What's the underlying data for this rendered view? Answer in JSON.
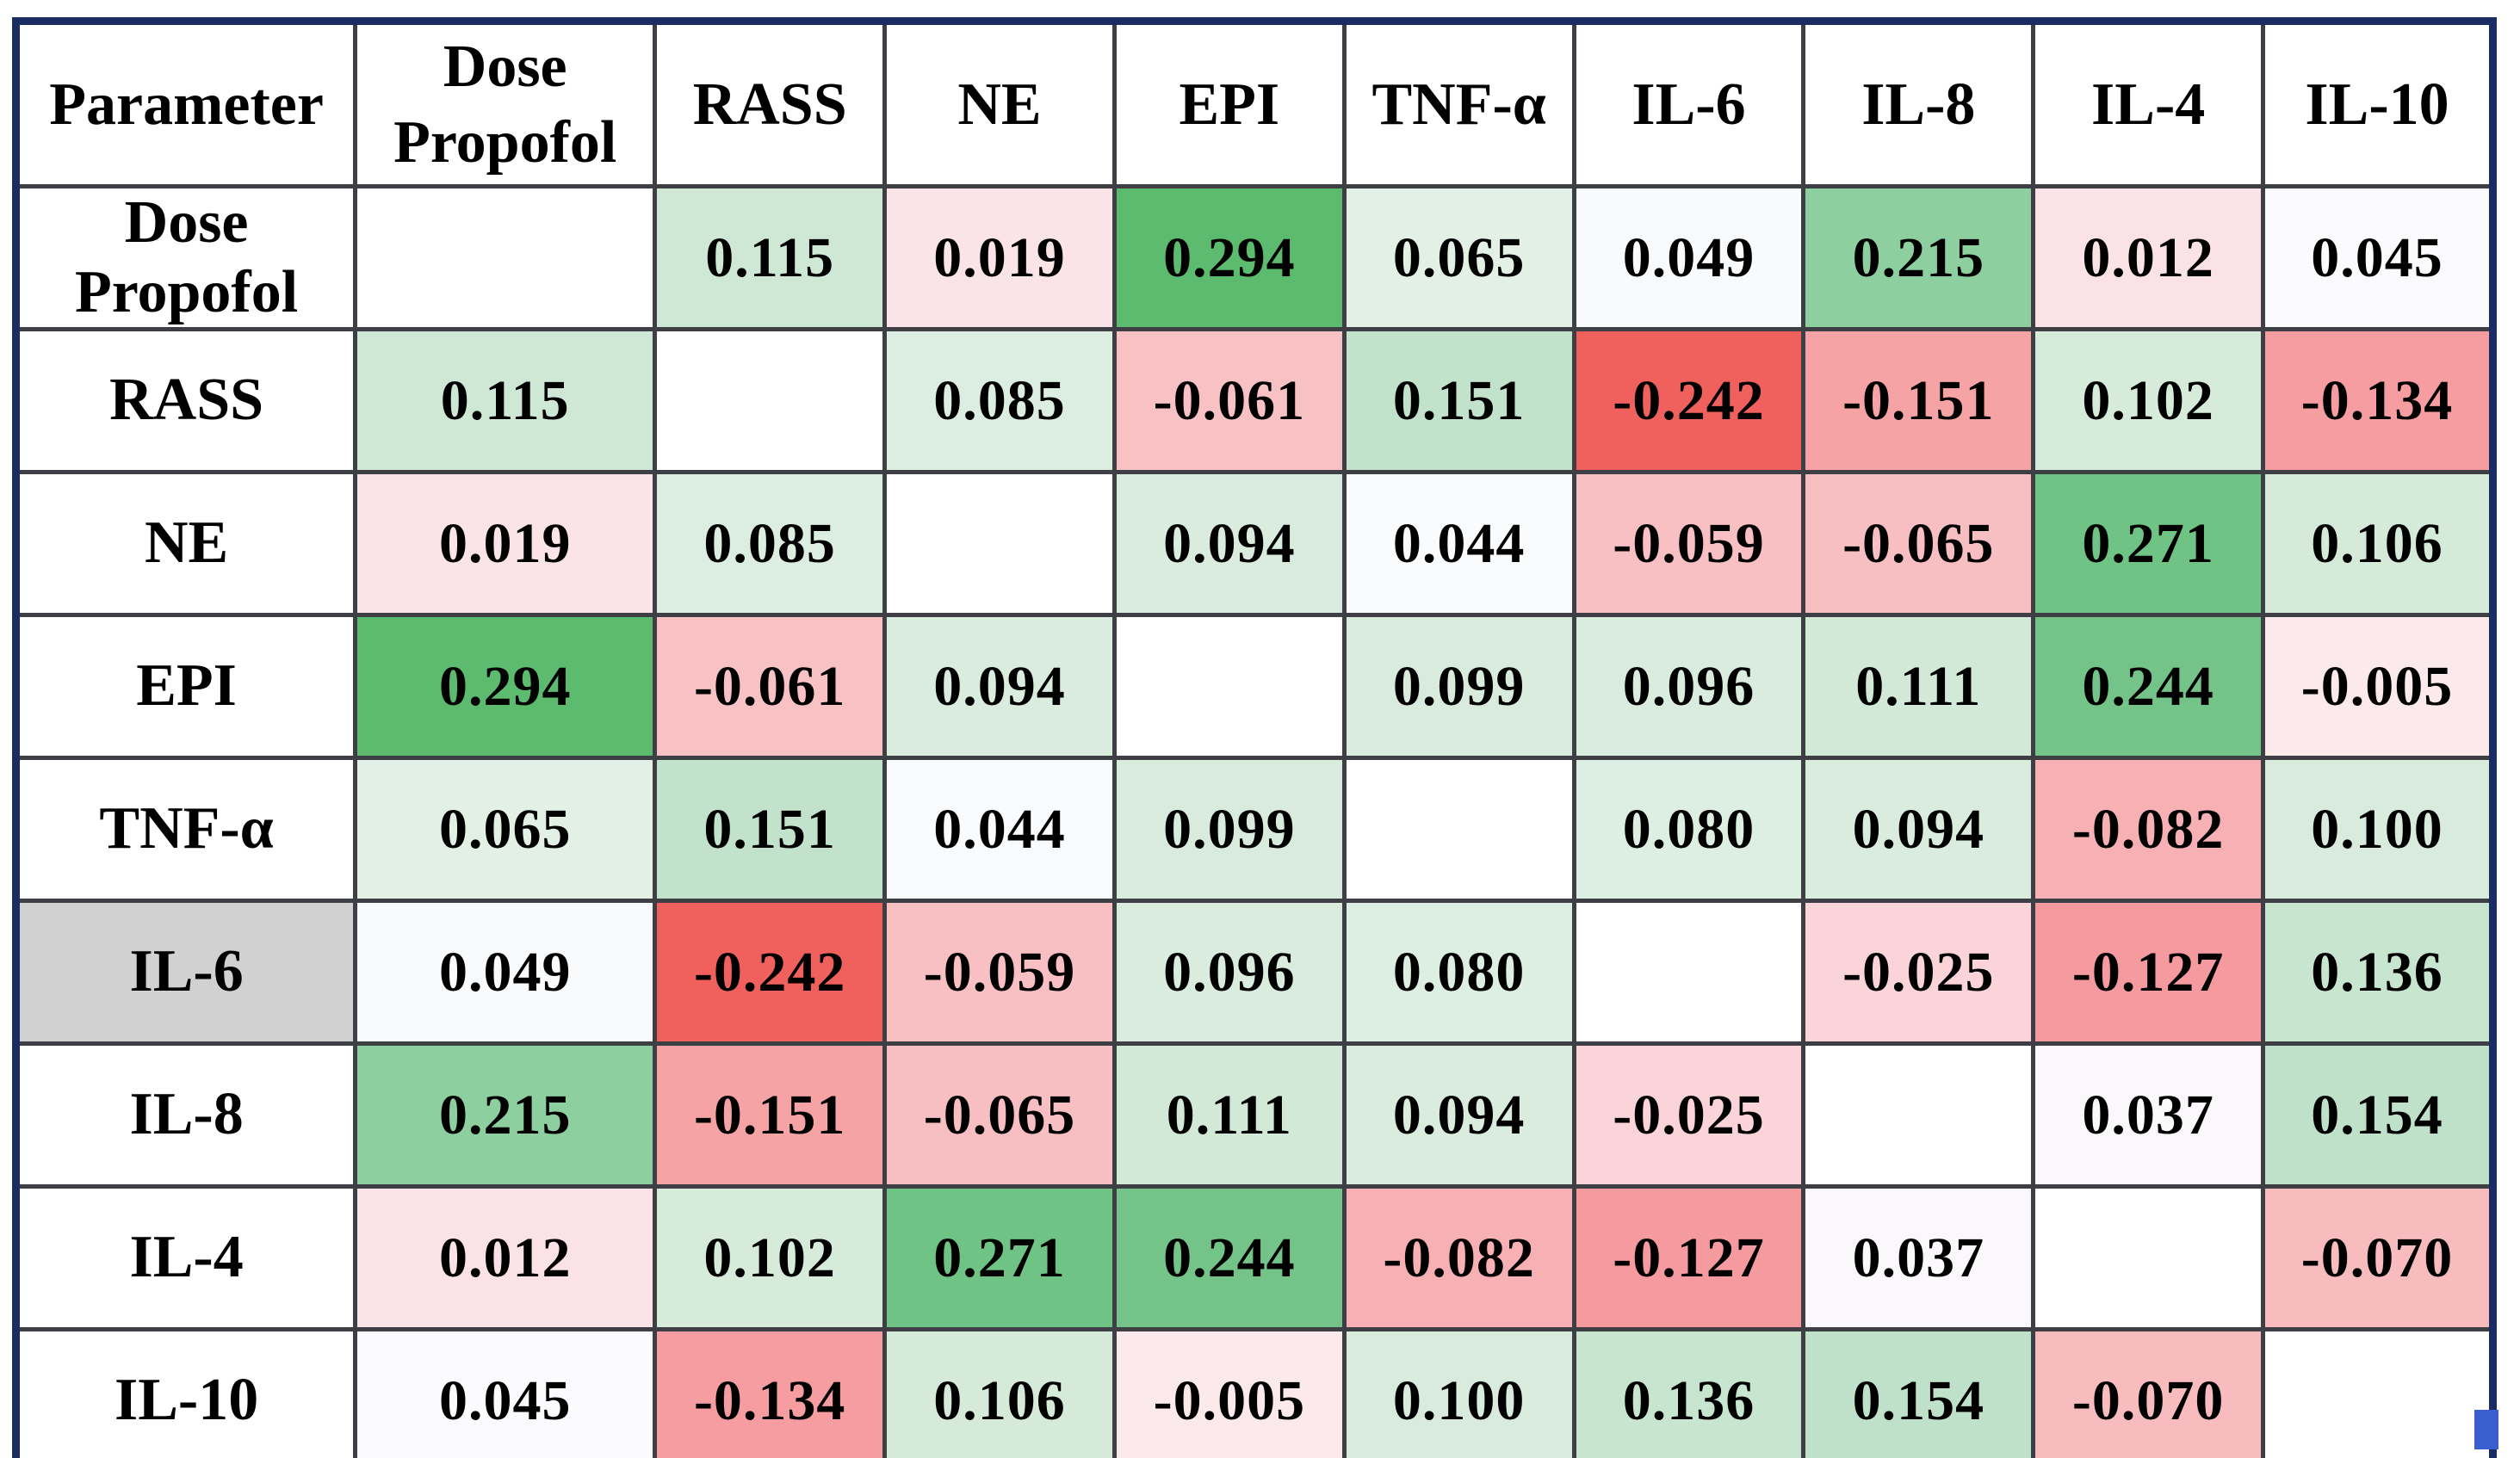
{
  "table": {
    "corner_header": "Parameter",
    "columns": [
      "Dose Propofol",
      "RASS",
      "NE",
      "EPI",
      "TNF-α",
      "IL-6",
      "IL-8",
      "IL-4",
      "IL-10"
    ]
  },
  "chart_data": {
    "type": "heatmap",
    "title": "",
    "corner_label": "Parameter",
    "categories": [
      "Dose Propofol",
      "RASS",
      "NE",
      "EPI",
      "TNF-α",
      "IL-6",
      "IL-8",
      "IL-4",
      "IL-10"
    ],
    "values": [
      [
        null,
        0.115,
        0.019,
        0.294,
        0.065,
        0.049,
        0.215,
        0.012,
        0.045
      ],
      [
        0.115,
        null,
        0.085,
        -0.061,
        0.151,
        -0.242,
        -0.151,
        0.102,
        -0.134
      ],
      [
        0.019,
        0.085,
        null,
        0.094,
        0.044,
        -0.059,
        -0.065,
        0.271,
        0.106
      ],
      [
        0.294,
        -0.061,
        0.094,
        null,
        0.099,
        0.096,
        0.111,
        0.244,
        -0.005
      ],
      [
        0.065,
        0.151,
        0.044,
        0.099,
        null,
        0.08,
        0.094,
        -0.082,
        0.1
      ],
      [
        0.049,
        -0.242,
        -0.059,
        0.096,
        0.08,
        null,
        -0.025,
        -0.127,
        0.136
      ],
      [
        0.215,
        -0.151,
        -0.065,
        0.111,
        0.094,
        -0.025,
        null,
        0.037,
        0.154
      ],
      [
        0.012,
        0.102,
        0.271,
        0.244,
        -0.082,
        -0.127,
        0.037,
        null,
        -0.07
      ],
      [
        0.045,
        -0.134,
        0.106,
        -0.005,
        0.1,
        0.136,
        0.154,
        -0.07,
        null
      ]
    ],
    "cell_labels": [
      [
        "",
        "0.115",
        "0.019",
        "0.294",
        "0.065",
        "0.049",
        "0.215",
        "0.012",
        "0.045"
      ],
      [
        "0.115",
        "",
        "0.085",
        "-0.061",
        "0.151",
        "-0.242",
        "-0.151",
        "0.102",
        "-0.134"
      ],
      [
        "0.019",
        "0.085",
        "",
        "0.094",
        "0.044",
        "-0.059",
        "-0.065",
        "0.271",
        "0.106"
      ],
      [
        "0.294",
        "-0.061",
        "0.094",
        "",
        "0.099",
        "0.096",
        "0.111",
        "0.244",
        "-0.005"
      ],
      [
        "0.065",
        "0.151",
        "0.044",
        "0.099",
        "",
        "0.080",
        "0.094",
        "-0.082",
        "0.100"
      ],
      [
        "0.049",
        "-0.242",
        "-0.059",
        "0.096",
        "0.080",
        "",
        "-0.025",
        "-0.127",
        "0.136"
      ],
      [
        "0.215",
        "-0.151",
        "-0.065",
        "0.111",
        "0.094",
        "-0.025",
        "",
        "0.037",
        "0.154"
      ],
      [
        "0.012",
        "0.102",
        "0.271",
        "0.244",
        "-0.082",
        "-0.127",
        "0.037",
        "",
        "-0.070"
      ],
      [
        "0.045",
        "-0.134",
        "0.106",
        "-0.005",
        "0.100",
        "0.136",
        "0.154",
        "-0.070",
        ""
      ]
    ],
    "cell_colors": [
      [
        "#ffffff",
        "#cfe8d6",
        "#fbe4e8",
        "#5cbb6e",
        "#e2f0e6",
        "#f8fafc",
        "#8ecf9f",
        "#fbe2e6",
        "#fbfbfd"
      ],
      [
        "#cfe8d6",
        "#ffffff",
        "#dceee1",
        "#f8c2c5",
        "#c2e2cb",
        "#f0615e",
        "#f6a3a5",
        "#d6ebda",
        "#f59da0"
      ],
      [
        "#fbe4e8",
        "#dceee1",
        "#ffffff",
        "#d9ecde",
        "#fafbfd",
        "#f8c0c3",
        "#f8bfc2",
        "#6fc384",
        "#d5ead9"
      ],
      [
        "#5cbb6e",
        "#f8c2c5",
        "#d9ecde",
        "#ffffff",
        "#d8ebdd",
        "#d9ecde",
        "#d2e9d8",
        "#74c489",
        "#fce9eb"
      ],
      [
        "#e2f0e6",
        "#c2e2cb",
        "#fafbfd",
        "#d8ebdd",
        "#ffffff",
        "#ddeee2",
        "#d9ecde",
        "#f7b0b4",
        "#d8ebdd"
      ],
      [
        "#f8fafc",
        "#f0615e",
        "#f8c0c3",
        "#d9ecde",
        "#ddeee2",
        "#ffffff",
        "#fad4d8",
        "#f59a9e",
        "#c7e5cf"
      ],
      [
        "#8ecf9f",
        "#f6a3a5",
        "#f8bfc2",
        "#d2e9d8",
        "#d9ecde",
        "#fad4d8",
        "#ffffff",
        "#fbf8fb",
        "#bfe1c9"
      ],
      [
        "#fbe2e6",
        "#d6ebda",
        "#6fc384",
        "#74c489",
        "#f7b0b4",
        "#f59a9e",
        "#fbf8fb",
        "#ffffff",
        "#f8bcbf"
      ],
      [
        "#fbfbfd",
        "#f59da0",
        "#d5ead9",
        "#fce9eb",
        "#d8ebdd",
        "#c7e5cf",
        "#bfe1c9",
        "#f8bcbf",
        "#ffffff"
      ]
    ],
    "row_header_colors": [
      "#ffffff",
      "#ffffff",
      "#ffffff",
      "#ffffff",
      "#ffffff",
      "#d1d1d1",
      "#ffffff",
      "#ffffff",
      "#ffffff"
    ],
    "legend": "none",
    "grid": true,
    "colorscale": {
      "strong_positive": "#5cbb6e",
      "strong_negative": "#f0615e",
      "neutral": "#ffffff"
    }
  },
  "styles": {
    "outer_border_color": "#192d63",
    "grid_border_color": "#3e3e45",
    "text_color": "#000000",
    "il6_row_header_bg": "#d1d1d1",
    "handle_color": "#3b5ece"
  },
  "column_widths_pct": [
    13.7,
    12.1,
    9.275,
    9.275,
    9.275,
    9.275,
    9.275,
    9.275,
    9.275,
    9.275
  ]
}
